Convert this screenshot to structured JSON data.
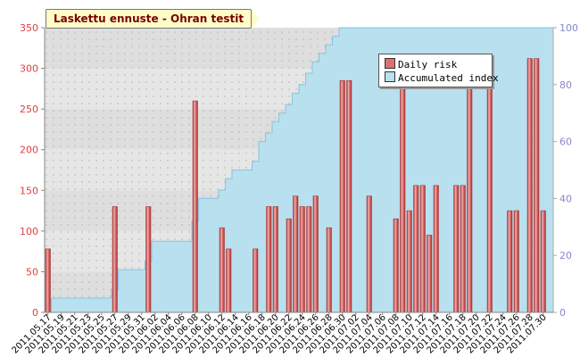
{
  "title": "Laskettu ennuste - Ohran testit",
  "colors": {
    "bar": "#e07070",
    "bar_dark": "#a23030",
    "bar_light": "#f4b0b0",
    "area": "#b8e0ee",
    "area_line": "#88c4dc",
    "left_axis": "#e04040",
    "right_axis": "#8888cc"
  },
  "chart_data": {
    "type": "bar",
    "grid": true,
    "legend_position": "top-right",
    "xlabel": "",
    "ylabel": "",
    "ylim": [
      0,
      350
    ],
    "ylim_right": [
      0,
      100
    ],
    "yticks": [
      0,
      50,
      100,
      150,
      200,
      250,
      300,
      350
    ],
    "yticks_right": [
      0,
      20,
      40,
      60,
      80,
      100
    ],
    "categories": [
      "2011.05.17",
      "2011.05.18",
      "2011.05.19",
      "2011.05.20",
      "2011.05.21",
      "2011.05.22",
      "2011.05.23",
      "2011.05.24",
      "2011.05.25",
      "2011.05.26",
      "2011.05.27",
      "2011.05.28",
      "2011.05.29",
      "2011.05.30",
      "2011.05.31",
      "2011.06.01",
      "2011.06.02",
      "2011.06.03",
      "2011.06.04",
      "2011.06.05",
      "2011.06.06",
      "2011.06.07",
      "2011.06.08",
      "2011.06.09",
      "2011.06.10",
      "2011.06.11",
      "2011.06.12",
      "2011.06.13",
      "2011.06.14",
      "2011.06.15",
      "2011.06.16",
      "2011.06.17",
      "2011.06.18",
      "2011.06.19",
      "2011.06.20",
      "2011.06.21",
      "2011.06.22",
      "2011.06.23",
      "2011.06.24",
      "2011.06.25",
      "2011.06.26",
      "2011.06.27",
      "2011.06.28",
      "2011.06.29",
      "2011.06.30",
      "2011.07.01",
      "2011.07.02",
      "2011.07.03",
      "2011.07.04",
      "2011.07.05",
      "2011.07.06",
      "2011.07.07",
      "2011.07.08",
      "2011.07.09",
      "2011.07.10",
      "2011.07.11",
      "2011.07.12",
      "2011.07.13",
      "2011.07.14",
      "2011.07.15",
      "2011.07.16",
      "2011.07.17",
      "2011.07.18",
      "2011.07.19",
      "2011.07.20",
      "2011.07.21",
      "2011.07.22",
      "2011.07.23",
      "2011.07.24",
      "2011.07.25",
      "2011.07.26",
      "2011.07.27",
      "2011.07.28",
      "2011.07.29",
      "2011.07.30",
      "2011.07.31"
    ],
    "xtick_labels": [
      "2011.05.17",
      "2011.05.19",
      "2011.05.21",
      "2011.05.23",
      "2011.05.25",
      "2011.05.27",
      "2011.05.29",
      "2011.05.31",
      "2011.06.02",
      "2011.06.04",
      "2011.06.06",
      "2011.06.08",
      "2011.06.10",
      "2011.06.12",
      "2011.06.14",
      "2011.06.16",
      "2011.06.18",
      "2011.06.20",
      "2011.06.22",
      "2011.06.24",
      "2011.06.26",
      "2011.06.28",
      "2011.06.30",
      "2011.07.02",
      "2011.07.04",
      "2011.07.06",
      "2011.07.08",
      "2011.07.10",
      "2011.07.12",
      "2011.07.14",
      "2011.07.16",
      "2011.07.18",
      "2011.07.20",
      "2011.07.22",
      "2011.07.24",
      "2011.07.26",
      "2011.07.28",
      "2011.07.30"
    ],
    "series": [
      {
        "name": "Daily risk",
        "type": "bar",
        "axis": "left",
        "values": [
          78,
          0,
          0,
          0,
          0,
          0,
          0,
          0,
          0,
          0,
          130,
          0,
          0,
          0,
          0,
          130,
          0,
          0,
          0,
          0,
          0,
          0,
          260,
          0,
          0,
          0,
          104,
          78,
          0,
          0,
          0,
          78,
          0,
          130,
          130,
          0,
          115,
          143,
          130,
          130,
          143,
          0,
          104,
          0,
          285,
          285,
          0,
          0,
          143,
          0,
          0,
          0,
          115,
          285,
          125,
          156,
          156,
          95,
          156,
          0,
          0,
          156,
          156,
          285,
          0,
          0,
          312,
          0,
          0,
          125,
          125,
          0,
          312,
          312,
          125,
          0
        ]
      },
      {
        "name": "Accumulated index",
        "type": "area",
        "axis": "right",
        "values": [
          0,
          5,
          5,
          5,
          5,
          5,
          5,
          5,
          5,
          5,
          8,
          15,
          15,
          15,
          15,
          18,
          25,
          25,
          25,
          25,
          25,
          25,
          32,
          40,
          40,
          40,
          43,
          47,
          50,
          50,
          50,
          53,
          60,
          63,
          67,
          70,
          73,
          77,
          80,
          84,
          88,
          91,
          94,
          97,
          100,
          100,
          100,
          100,
          100,
          100,
          100,
          100,
          100,
          100,
          100,
          100,
          100,
          100,
          100,
          100,
          100,
          100,
          100,
          100,
          100,
          100,
          100,
          100,
          100,
          100,
          100,
          100,
          100,
          100,
          100,
          100
        ]
      }
    ]
  },
  "legend": {
    "items": [
      {
        "label": "Daily risk",
        "color": "#e07070"
      },
      {
        "label": "Accumulated index",
        "color": "#b8e0ee"
      }
    ]
  }
}
